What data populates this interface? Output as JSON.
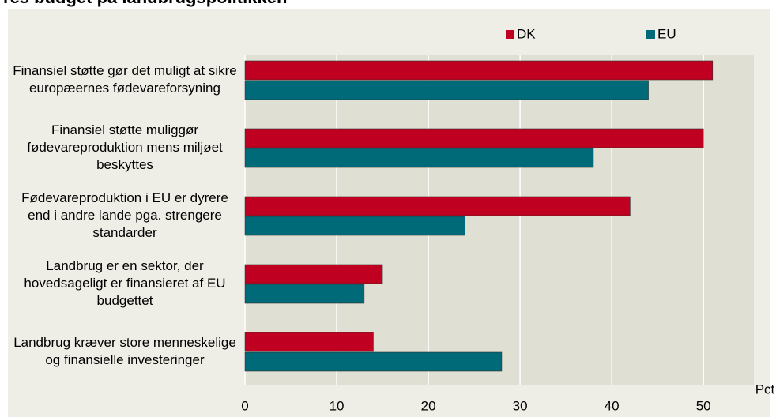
{
  "chart_data": {
    "type": "bar",
    "orientation": "horizontal",
    "title": "res budget på landbrugspolitikken",
    "categories": [
      "Finansiel støtte gør det muligt at sikre europæernes fødevareforsyning",
      "Finansiel støtte muliggør fødevareproduktion mens miljøet beskyttes",
      "Fødevareproduktion i EU er dyrere end i andre lande pga. strengere standarder",
      "Landbrug er en sektor, der hovedsageligt er finansieret af EU budgettet",
      "Landbrug kræver store menneskelige og finansielle investeringer"
    ],
    "series": [
      {
        "name": "DK",
        "color": "#c00020",
        "values": [
          51,
          50,
          42,
          15,
          14
        ]
      },
      {
        "name": "EU",
        "color": "#006a78",
        "values": [
          44,
          38,
          24,
          13,
          28
        ]
      }
    ],
    "x_label": "Pct",
    "xlim": [
      0,
      55.5
    ],
    "xticks": [
      0,
      10,
      20,
      30,
      40,
      50
    ],
    "grid": true
  }
}
